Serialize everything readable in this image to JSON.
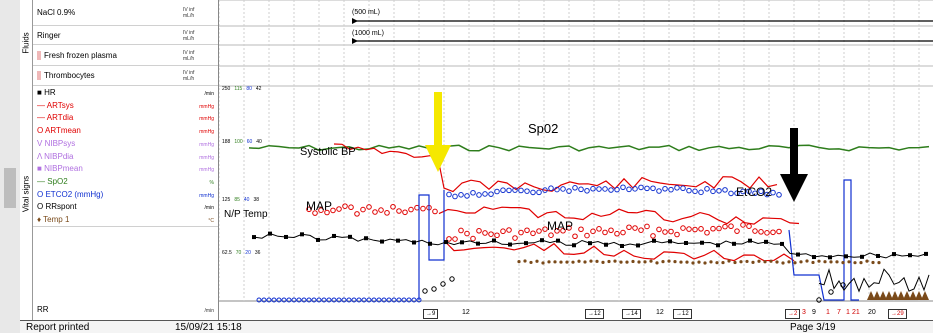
{
  "section_labels": {
    "fluids": "Fluids",
    "vital_signs": "Vital signs"
  },
  "fluids": [
    {
      "name": "NaCl 0.9%",
      "unit": "IV inf\nmL/h",
      "note": "(500 mL)"
    },
    {
      "name": "Ringer",
      "unit": "IV inf\nmL/h",
      "note": "(1000 mL)"
    },
    {
      "name": "Fresh frozen plasma",
      "unit": "IV inf\nmL/h"
    },
    {
      "name": "Thrombocytes",
      "unit": "IV inf\nmL/h"
    }
  ],
  "vitals": [
    {
      "name": "HR",
      "unit": "/min",
      "color": "#000000",
      "symbol": "■"
    },
    {
      "name": "ARTsys",
      "unit": "mmHg",
      "color": "#e00000",
      "symbol": "—"
    },
    {
      "name": "ARTdia",
      "unit": "mmHg",
      "color": "#e00000",
      "symbol": "—"
    },
    {
      "name": "ARTmean",
      "unit": "mmHg",
      "color": "#e00000",
      "symbol": "O"
    },
    {
      "name": "NIBPsys",
      "unit": "mmHg",
      "color": "#b070e0",
      "symbol": "V"
    },
    {
      "name": "NIBPdia",
      "unit": "mmHg",
      "color": "#b070e0",
      "symbol": "Λ"
    },
    {
      "name": "NIBPmean",
      "unit": "mmHg",
      "color": "#b070e0",
      "symbol": "■"
    },
    {
      "name": "SpO2",
      "unit": "%",
      "color": "#2e7d1c",
      "symbol": "—"
    },
    {
      "name": "ETCO2 (mmHg)",
      "unit": "mmHg",
      "color": "#1030d0",
      "symbol": "O"
    },
    {
      "name": "RRspont",
      "unit": "/min",
      "color": "#000000",
      "symbol": "O"
    },
    {
      "name": "Temp 1",
      "unit": "°C",
      "color": "#7a4a1a",
      "symbol": "♦"
    }
  ],
  "rr_row": {
    "name": "RR",
    "unit": "/min"
  },
  "scales": [
    [
      "250",
      "115",
      "80",
      "42"
    ],
    [
      "188",
      "100",
      "60",
      "40"
    ],
    [
      "125",
      "85",
      "40",
      "38"
    ],
    [
      "62.5",
      "70",
      "20",
      "36"
    ]
  ],
  "annotations": {
    "spo2": "Sp02",
    "systolic_bp": "Systolic BP",
    "map_upper": "MAP",
    "map_lower": "MAP",
    "etco2": "EtCO2",
    "np_temp": "N/P Temp"
  },
  "rr_markers": [
    "→9",
    "12",
    "→12",
    "→14",
    "12",
    "→12",
    "→2",
    "3",
    "9",
    "1",
    "7",
    "1",
    "21",
    "20",
    "→29"
  ],
  "footer": {
    "report": "Report printed",
    "date": "15/09/21 15:18",
    "page": "Page 3/19"
  },
  "colors": {
    "art": "#e00000",
    "spo2": "#2e7d1c",
    "etco2": "#1030d0",
    "hr": "#000000",
    "temp": "#7a4a1a",
    "yellow_arrow": "#f5e800",
    "black_arrow": "#000000"
  }
}
